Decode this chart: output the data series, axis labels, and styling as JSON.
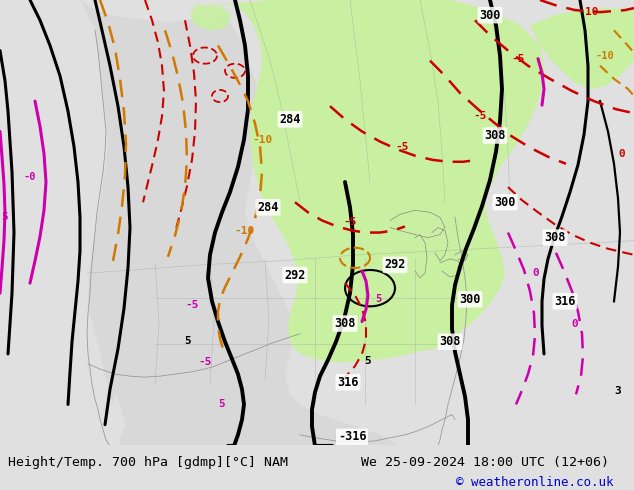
{
  "title_left": "Height/Temp. 700 hPa [gdmp][°C] NAM",
  "title_right": "We 25-09-2024 18:00 UTC (12+06)",
  "copyright": "© weatheronline.co.uk",
  "bg_color": "#d8d8d8",
  "map_bg_color": "#d8d8d8",
  "land_color": "#e8e8e8",
  "green_fill_color": "#c8f0a0",
  "figwidth": 6.34,
  "figheight": 4.9,
  "dpi": 100,
  "bottom_bar_color": "#e0e0e0",
  "title_fontsize": 9.5,
  "copyright_fontsize": 9,
  "font_family": "monospace",
  "red": "#cc0000",
  "orange": "#d07800",
  "magenta": "#cc00aa",
  "black": "#000000"
}
